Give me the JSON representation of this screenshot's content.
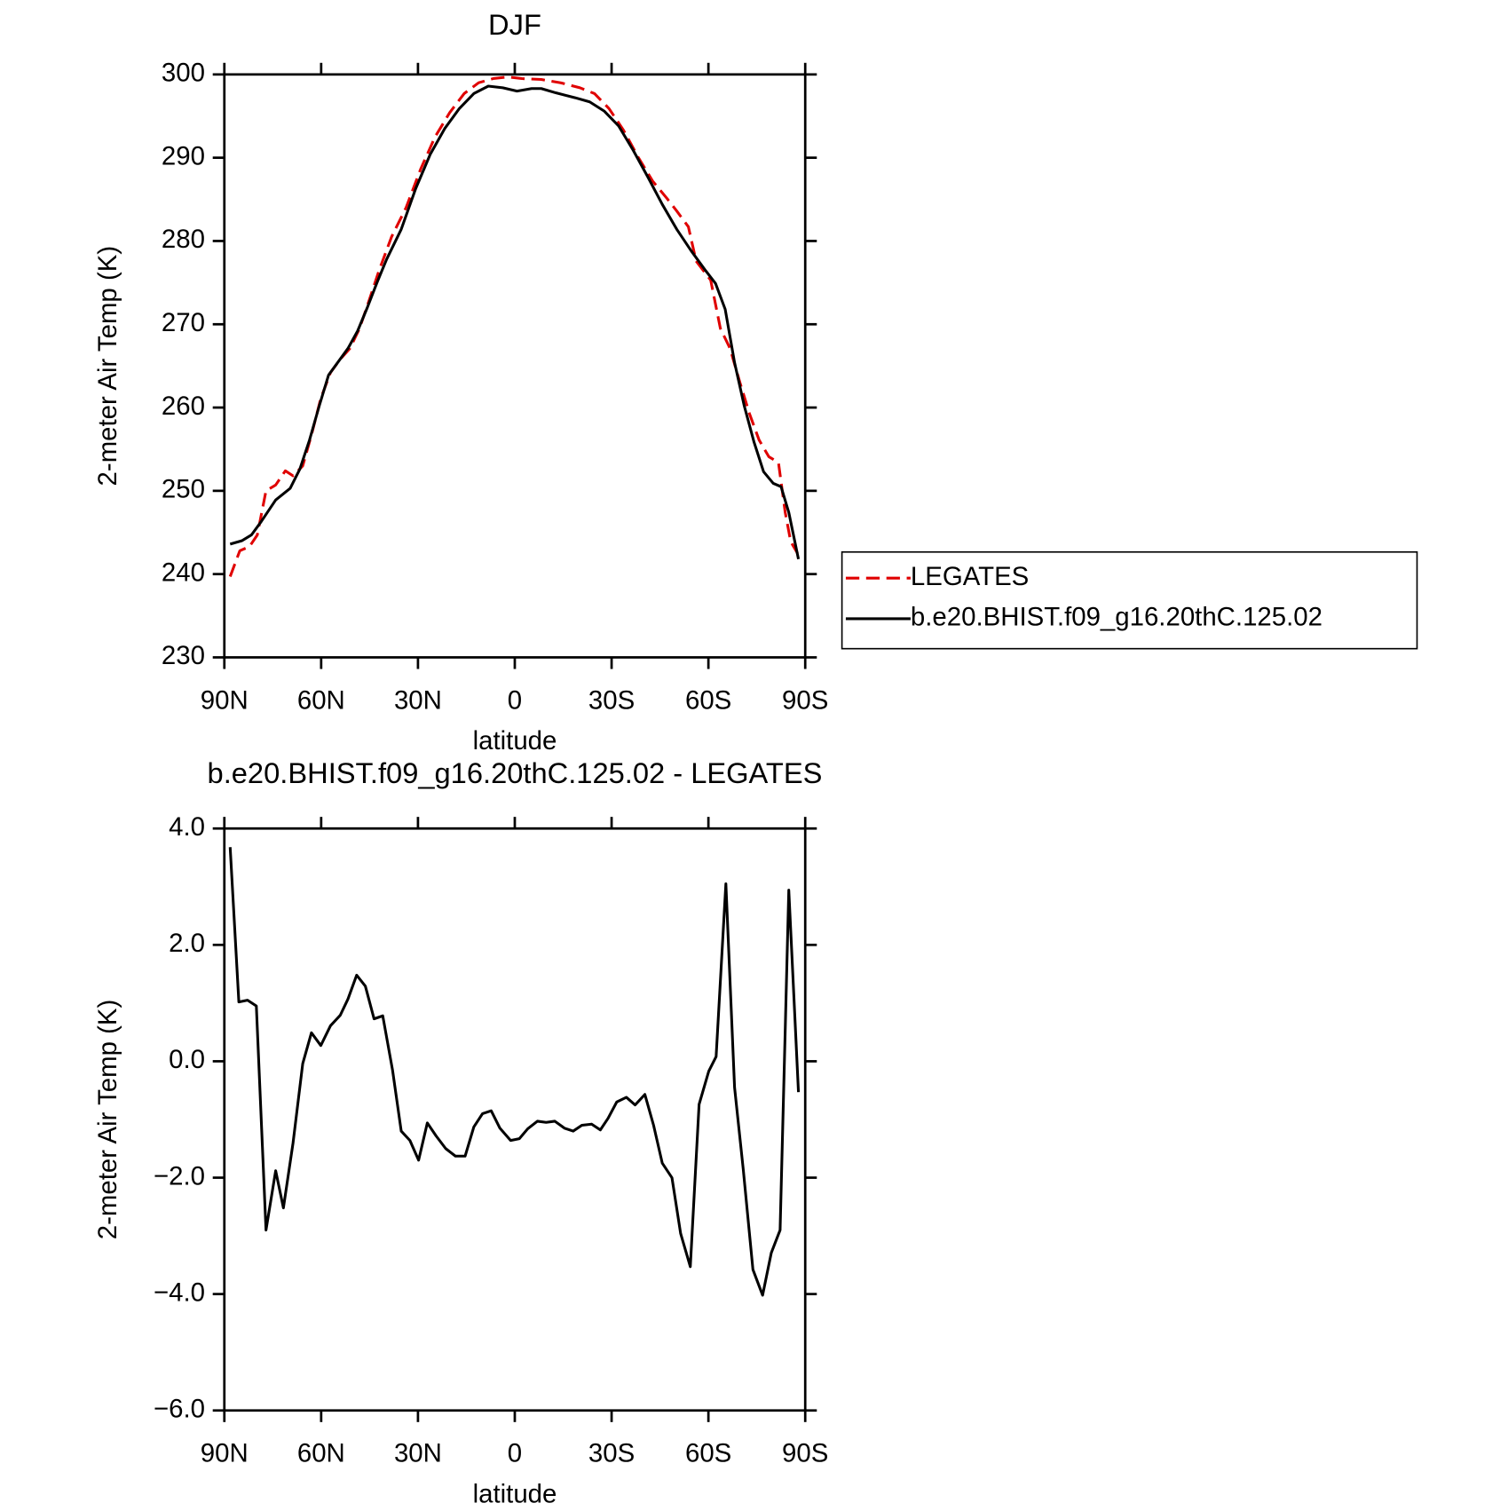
{
  "chart_data": [
    {
      "type": "line",
      "title": "DJF",
      "xlabel": "latitude",
      "ylabel": "2-meter Air Temp (K)",
      "xlim": [
        90,
        -90
      ],
      "xticks": [
        {
          "value": 90,
          "label": "90N"
        },
        {
          "value": 60,
          "label": "60N"
        },
        {
          "value": 30,
          "label": "30N"
        },
        0,
        {
          "value": -30,
          "label": "30S"
        },
        {
          "value": -60,
          "label": "60S"
        },
        {
          "value": -90,
          "label": "90S"
        }
      ],
      "ylim": [
        230,
        300
      ],
      "yticks": [
        230,
        240,
        250,
        260,
        270,
        280,
        290,
        300
      ],
      "legend": "right",
      "series": [
        {
          "name": "LEGATES",
          "color": "#e00000",
          "line_style": "dashed",
          "x": [
            88.2,
            85.2,
            82.2,
            79.8,
            77.1,
            74.1,
            71.1,
            68.7,
            65.7,
            63.0,
            60.1,
            57.1,
            54.1,
            51.1,
            48.1,
            45.1,
            42.1,
            38.2,
            33.7,
            29.2,
            24.7,
            20.2,
            15.7,
            11.2,
            6.7,
            2.2,
            -2.2,
            -8.2,
            -14.2,
            -20.2,
            -24.7,
            -29.2,
            -33.7,
            -38.2,
            -42.7,
            -47.2,
            -50.2,
            -53.8,
            -56.2,
            -60.7,
            -63.7,
            -66.7,
            -69.7,
            -72.7,
            -75.7,
            -78.7,
            -81.7,
            -83.8,
            -85.5,
            -87.6
          ],
          "values": [
            239.7,
            242.8,
            243.3,
            244.7,
            250.0,
            250.7,
            252.4,
            251.8,
            253.0,
            256.7,
            261.1,
            264.2,
            265.8,
            267.1,
            269.5,
            272.9,
            276.4,
            280.5,
            284.0,
            288.6,
            292.5,
            295.4,
            297.7,
            299.0,
            299.5,
            299.7,
            299.5,
            299.4,
            299.0,
            298.4,
            297.7,
            295.9,
            293.3,
            290.1,
            287.2,
            285.1,
            283.6,
            281.7,
            277.6,
            275.3,
            269.5,
            267.1,
            263.1,
            259.3,
            256.1,
            254.1,
            253.4,
            247.4,
            243.9,
            242.5
          ]
        },
        {
          "name": "b.e20.BHIST.f09_g16.20thC.125.02",
          "color": "#000000",
          "line_style": "solid",
          "x": [
            88.2,
            84.6,
            81.6,
            78.6,
            74.1,
            69.6,
            66.6,
            63.6,
            60.6,
            57.7,
            51.7,
            48.7,
            45.7,
            42.7,
            39.7,
            35.2,
            30.7,
            26.2,
            21.7,
            17.2,
            12.7,
            8.2,
            3.7,
            -0.7,
            -5.2,
            -8.2,
            -12.7,
            -18.7,
            -23.2,
            -27.7,
            -32.2,
            -36.7,
            -41.2,
            -45.7,
            -50.2,
            -54.7,
            -59.2,
            -62.2,
            -65.2,
            -68.1,
            -71.1,
            -74.1,
            -77.1,
            -80.1,
            -82.5,
            -84.9,
            -87.9
          ],
          "values": [
            243.6,
            244.0,
            244.7,
            246.3,
            248.9,
            250.3,
            252.6,
            256.1,
            260.2,
            263.9,
            267.1,
            269.2,
            272.0,
            275.0,
            277.8,
            281.4,
            286.3,
            290.4,
            293.5,
            295.9,
            297.7,
            298.6,
            298.4,
            298.0,
            298.3,
            298.3,
            297.8,
            297.2,
            296.7,
            295.6,
            293.8,
            290.9,
            287.7,
            284.4,
            281.4,
            278.8,
            276.4,
            274.9,
            271.8,
            265.4,
            260.2,
            255.9,
            252.3,
            250.9,
            250.5,
            247.4,
            241.8
          ]
        }
      ]
    },
    {
      "type": "line",
      "title": "b.e20.BHIST.f09_g16.20thC.125.02 - LEGATES",
      "xlabel": "latitude",
      "ylabel": "2-meter Air Temp (K)",
      "xlim": [
        90,
        -90
      ],
      "xticks": [
        {
          "value": 90,
          "label": "90N"
        },
        {
          "value": 60,
          "label": "60N"
        },
        {
          "value": 30,
          "label": "30N"
        },
        0,
        {
          "value": -30,
          "label": "30S"
        },
        {
          "value": -60,
          "label": "60S"
        },
        {
          "value": -90,
          "label": "90S"
        }
      ],
      "ylim": [
        -6,
        4
      ],
      "yticks": [
        {
          "value": -6,
          "label": "−6.0"
        },
        {
          "value": -4,
          "label": "−4.0"
        },
        {
          "value": -2,
          "label": "−2.0"
        },
        {
          "value": 0,
          "label": "0.0"
        },
        {
          "value": 2,
          "label": "2.0"
        },
        {
          "value": 4,
          "label": "4.0"
        }
      ],
      "series": [
        {
          "color": "#000000",
          "line_style": "solid",
          "x": [
            88.2,
            85.5,
            82.8,
            80.1,
            77.1,
            74.1,
            71.7,
            68.7,
            65.7,
            63.0,
            60.1,
            57.1,
            54.1,
            51.7,
            49.0,
            46.3,
            43.6,
            40.9,
            37.9,
            35.2,
            32.5,
            29.8,
            27.1,
            24.4,
            21.4,
            18.4,
            15.4,
            12.7,
            10.0,
            7.3,
            4.6,
            1.3,
            -1.4,
            -4.0,
            -7.0,
            -9.7,
            -12.4,
            -15.4,
            -18.1,
            -20.8,
            -23.8,
            -26.5,
            -28.9,
            -31.6,
            -34.6,
            -37.3,
            -40.3,
            -43.0,
            -45.7,
            -48.7,
            -51.4,
            -54.4,
            -57.1,
            -60.1,
            -62.4,
            -65.4,
            -68.1,
            -70.8,
            -73.8,
            -76.8,
            -79.5,
            -82.2,
            -84.9,
            -87.9
          ],
          "values": [
            3.68,
            1.02,
            1.05,
            0.95,
            -2.9,
            -1.88,
            -2.52,
            -1.4,
            -0.04,
            0.49,
            0.27,
            0.61,
            0.79,
            1.07,
            1.48,
            1.29,
            0.73,
            0.78,
            -0.15,
            -1.2,
            -1.36,
            -1.7,
            -1.06,
            -1.28,
            -1.5,
            -1.63,
            -1.63,
            -1.13,
            -0.9,
            -0.85,
            -1.15,
            -1.36,
            -1.33,
            -1.16,
            -1.03,
            -1.05,
            -1.03,
            -1.15,
            -1.2,
            -1.1,
            -1.08,
            -1.18,
            -0.98,
            -0.7,
            -0.62,
            -0.75,
            -0.57,
            -1.1,
            -1.75,
            -2.0,
            -2.96,
            -3.53,
            -0.74,
            -0.17,
            0.08,
            3.05,
            -0.45,
            -1.86,
            -3.58,
            -4.02,
            -3.29,
            -2.9,
            2.94,
            -0.53
          ]
        }
      ]
    }
  ]
}
